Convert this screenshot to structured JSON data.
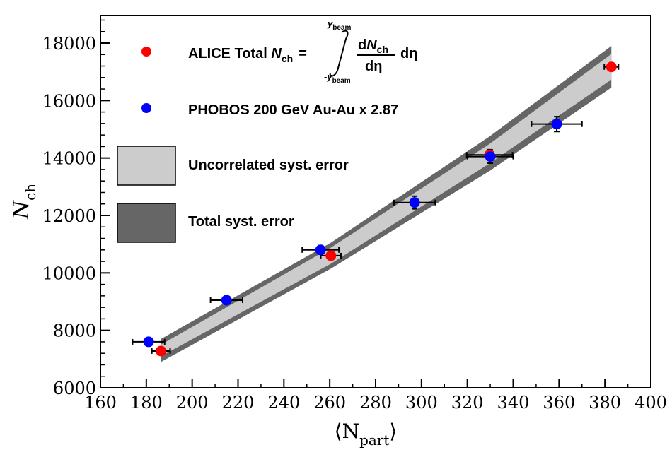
{
  "chart_data": {
    "type": "scatter",
    "xlabel": "⟨N",
    "xlabel_sub": "part",
    "xlabel_close": "⟩",
    "ylabel": "N",
    "ylabel_sub": "ch",
    "xlim": [
      160,
      400
    ],
    "ylim": [
      6000,
      19000
    ],
    "xticks": [
      160,
      180,
      200,
      220,
      240,
      260,
      280,
      300,
      320,
      340,
      360,
      380,
      400
    ],
    "yticks": [
      6000,
      8000,
      10000,
      12000,
      14000,
      16000,
      18000
    ],
    "grid": false,
    "legend_position": "top-left",
    "series": [
      {
        "name": "ALICE Total Nch",
        "color": "#ff0000",
        "points": [
          {
            "x": 186.4,
            "y": 7280,
            "xerr": 4,
            "yerr": 100
          },
          {
            "x": 260.5,
            "y": 10600,
            "xerr": 4.4,
            "yerr": 120
          },
          {
            "x": 329.7,
            "y": 14110,
            "xerr": 10,
            "yerr": 180
          },
          {
            "x": 382.8,
            "y": 17170,
            "xerr": 3.1,
            "yerr": 100
          }
        ]
      },
      {
        "name": "PHOBOS 200 GeV Au-Au  x 2.87",
        "color": "#0000ff",
        "points": [
          {
            "x": 181.0,
            "y": 7600,
            "xerr": 7,
            "yerr": 100
          },
          {
            "x": 215.0,
            "y": 9050,
            "xerr": 7,
            "yerr": 120
          },
          {
            "x": 256.0,
            "y": 10800,
            "xerr": 8,
            "yerr": 150
          },
          {
            "x": 297.0,
            "y": 12450,
            "xerr": 9,
            "yerr": 220
          },
          {
            "x": 330.0,
            "y": 14050,
            "xerr": 10,
            "yerr": 230
          },
          {
            "x": 359.0,
            "y": 15180,
            "xerr": 11,
            "yerr": 260
          }
        ]
      }
    ],
    "bands": {
      "total_syst": {
        "name": "Total syst. error",
        "color": "#666666",
        "x": [
          186.4,
          260.5,
          329.7,
          382.8
        ],
        "upper": [
          7700,
          11050,
          14750,
          17900
        ],
        "lower": [
          6900,
          10150,
          13550,
          16450
        ]
      },
      "uncorrelated_syst": {
        "name": "Uncorrelated syst. error",
        "color": "#cccccc",
        "x": [
          186.4,
          260.5,
          329.7,
          382.8
        ],
        "upper": [
          7500,
          10880,
          14490,
          17620
        ],
        "lower": [
          7100,
          10320,
          13810,
          16730
        ]
      }
    }
  },
  "legend": {
    "alice_text": "ALICE Total ",
    "alice_N": "N",
    "alice_N_sub": "ch",
    "alice_eq": "=",
    "integral_upper": "y",
    "integral_upper_sub": "beam",
    "integral_lower": "-y",
    "integral_lower_sub": "beam",
    "frac_num_d": "d",
    "frac_num_N": "N",
    "frac_num_sub": "ch",
    "frac_den": "dη",
    "d_eta": "dη",
    "phobos": "PHOBOS 200 GeV Au-Au  x 2.87",
    "uncorrelated": "Uncorrelated syst. error",
    "total": "Total syst. error"
  }
}
